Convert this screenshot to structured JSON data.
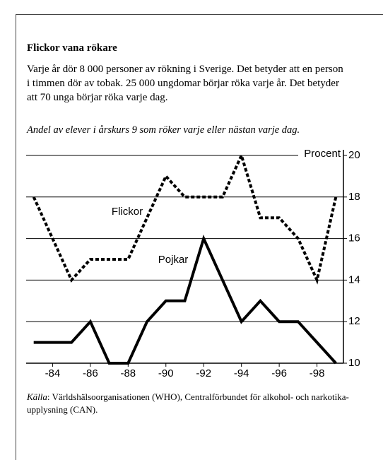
{
  "header": {
    "title": "Flickor vana rökare",
    "paragraph": [
      "Varje år dör 8 000 personer av rökning i Sverige. Det betyder att en person",
      "i timmen dör av tobak.  25 000 ungdomar börjar röka varje år. Det betyder",
      "att 70 unga börjar röka varje dag."
    ]
  },
  "chart_data": {
    "type": "line",
    "subtitle": "Andel av elever i årskurs 9 som röker varje eller nästan varje dag.",
    "y_label": "Procent",
    "x": [
      1983,
      1984,
      1985,
      1986,
      1987,
      1988,
      1989,
      1990,
      1991,
      1992,
      1993,
      1994,
      1995,
      1996,
      1997,
      1998,
      1999
    ],
    "series": [
      {
        "name": "Flickor",
        "color": "#000000",
        "dashed": true,
        "values": [
          18,
          16,
          14,
          15,
          15,
          15,
          17,
          19,
          18,
          18,
          18,
          20,
          17,
          17,
          16,
          14,
          18
        ]
      },
      {
        "name": "Pojkar",
        "color": "#000000",
        "dashed": false,
        "values": [
          11,
          11,
          11,
          12,
          10,
          10,
          12,
          13,
          13,
          16,
          14,
          12,
          13,
          12,
          12,
          11,
          10
        ]
      }
    ],
    "xlim": [
      1982.6,
      1999.4
    ],
    "xticks": [
      {
        "value": 1984,
        "label": "-84"
      },
      {
        "value": 1986,
        "label": "-86"
      },
      {
        "value": 1988,
        "label": "-88"
      },
      {
        "value": 1990,
        "label": "-90"
      },
      {
        "value": 1992,
        "label": "-92"
      },
      {
        "value": 1994,
        "label": "-94"
      },
      {
        "value": 1996,
        "label": "-96"
      },
      {
        "value": 1998,
        "label": "-98"
      }
    ],
    "ylim": [
      10,
      20
    ],
    "yticks": [
      10,
      12,
      14,
      16,
      18,
      20
    ],
    "grid": true
  },
  "source": {
    "label": "Källa",
    "text": [
      ": Världshälsoorganisationen (WHO), Centralförbundet för alkohol- och narkotika-",
      "upplysning (CAN)."
    ]
  }
}
